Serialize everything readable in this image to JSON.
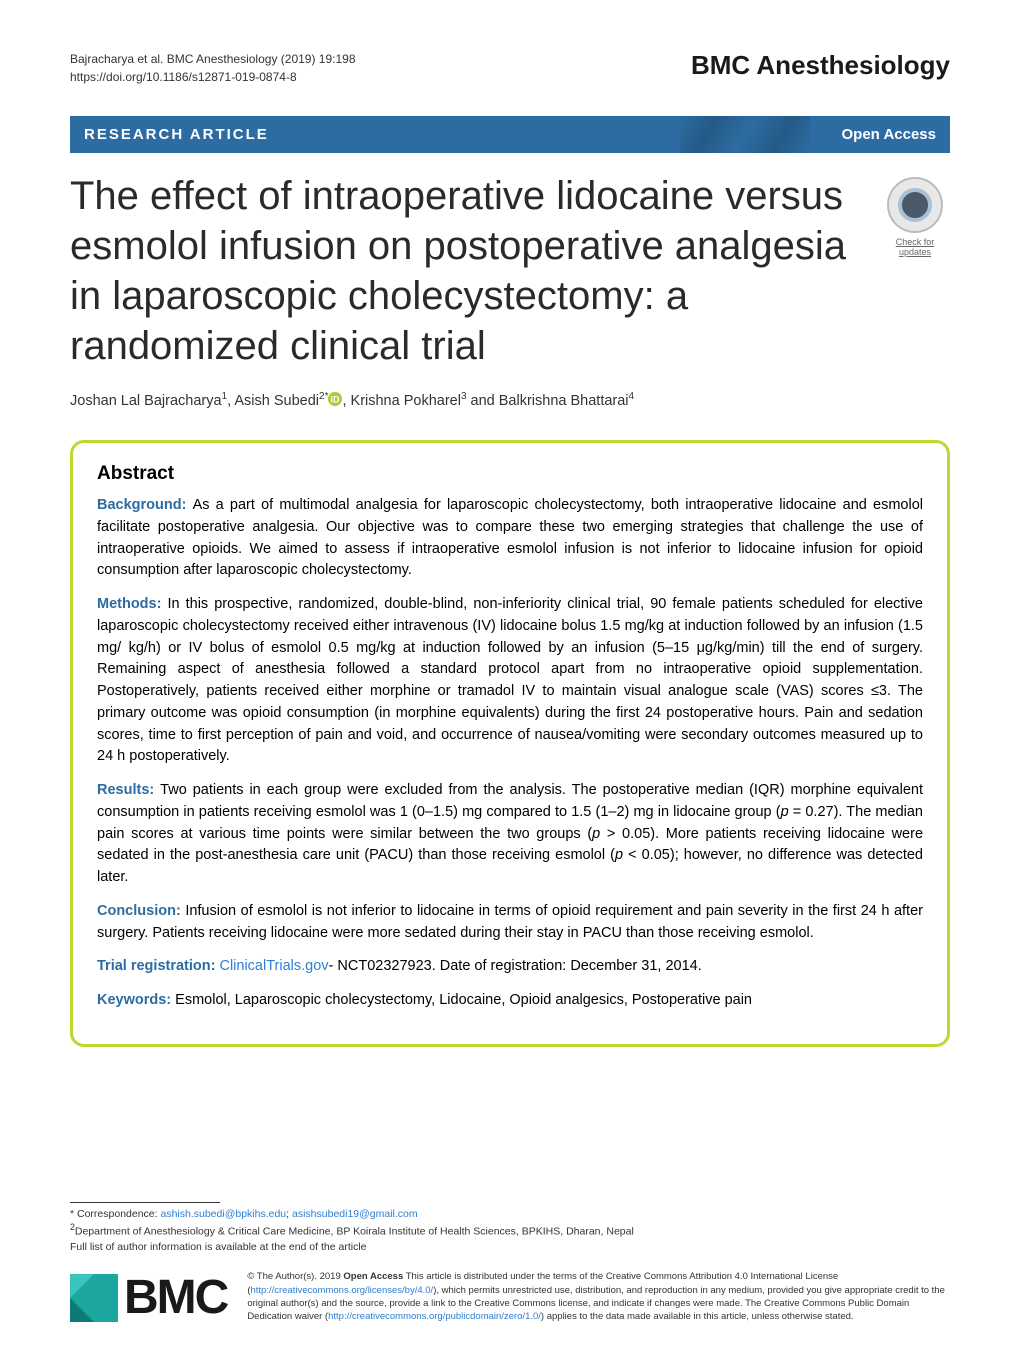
{
  "meta": {
    "citation": "Bajracharya et al. BMC Anesthesiology          (2019) 19:198",
    "doi": "https://doi.org/10.1186/s12871-019-0874-8",
    "journal_logo": "BMC Anesthesiology"
  },
  "header": {
    "article_type": "RESEARCH ARTICLE",
    "open_access": "Open Access"
  },
  "title": "The effect of intraoperative lidocaine versus esmolol infusion on postoperative analgesia in laparoscopic cholecystectomy: a randomized clinical trial",
  "check_updates": {
    "label": "Check for updates"
  },
  "authors_html": "Joshan Lal Bajracharya<sup>1</sup>, Asish Subedi<sup>2*</sup><span class='orcid'><svg width='14' height='14' viewBox='0 0 14 14'><circle cx='7' cy='7' r='7' fill='#a6ce39'/><text x='7' y='10.5' text-anchor='middle' font-size='9' fill='#fff' font-weight='bold'>iD</text></svg></span>, Krishna Pokharel<sup>3</sup> and Balkrishna Bhattarai<sup>4</sup>",
  "abstract": {
    "heading": "Abstract",
    "sections": [
      {
        "label": "Background:",
        "text": "As a part of multimodal analgesia for laparoscopic cholecystectomy, both intraoperative lidocaine and esmolol facilitate postoperative analgesia. Our objective was to compare these two emerging strategies that challenge the use of intraoperative opioids. We aimed to assess if intraoperative esmolol infusion is not inferior to lidocaine infusion for opioid consumption after laparoscopic cholecystectomy."
      },
      {
        "label": "Methods:",
        "text": "In this prospective, randomized, double-blind, non-inferiority clinical trial, 90 female patients scheduled for elective laparoscopic cholecystectomy received either intravenous (IV) lidocaine bolus 1.5 mg/kg at induction followed by an infusion (1.5 mg/ kg/h) or IV bolus of esmolol 0.5 mg/kg at induction followed by an infusion (5–15 μg/kg/min) till the end of surgery. Remaining aspect of anesthesia followed a standard protocol apart from no intraoperative opioid supplementation. Postoperatively, patients received either morphine or tramadol IV to maintain visual analogue scale (VAS) scores ≤3. The primary outcome was opioid consumption (in morphine equivalents) during the first 24 postoperative hours. Pain and sedation scores, time to first perception of pain and void, and occurrence of nausea/vomiting were secondary outcomes measured up to 24 h postoperatively."
      },
      {
        "label": "Results:",
        "text_html": "Two patients in each group were excluded from the analysis. The postoperative median (IQR) morphine equivalent consumption in patients receiving esmolol was 1 (0–1.5) mg compared to 1.5 (1–2) mg in lidocaine group (<span class='italic'>p</span> = 0.27). The median pain scores at various time points were similar between the two groups (<span class='italic'>p</span> > 0.05). More patients receiving lidocaine were sedated in the post-anesthesia care unit (PACU) than those receiving esmolol (<span class='italic'>p</span> < 0.05); however, no difference was detected later."
      },
      {
        "label": "Conclusion:",
        "text": "Infusion of esmolol is not inferior to lidocaine in terms of opioid requirement and pain severity in the first 24 h after surgery. Patients receiving lidocaine were more sedated during their stay in PACU than those receiving esmolol."
      },
      {
        "label": "Trial registration:",
        "text_html": "<a href='#' data-name='trial-registry-link' data-interactable='true'>ClinicalTrials.gov</a>- NCT02327923. Date of registration: December 31, 2014."
      },
      {
        "label": "Keywords:",
        "text": "Esmolol, Laparoscopic cholecystectomy, Lidocaine, Opioid analgesics, Postoperative pain"
      }
    ]
  },
  "footer": {
    "correspondence_label": "* Correspondence: ",
    "email1": "ashish.subedi@bpkihs.edu",
    "email2": "asishsubedi19@gmail.com",
    "affiliation": "Department of Anesthesiology & Critical Care Medicine, BP Koirala Institute of Health Sciences, BPKIHS, Dharan, Nepal",
    "affil_sup": "2",
    "full_list": "Full list of author information is available at the end of the article"
  },
  "license": {
    "bmc_text": "BMC",
    "text_html": "© The Author(s). 2019 <b>Open Access</b> This article is distributed under the terms of the Creative Commons Attribution 4.0 International License (<a href='#' data-name='cc-license-link' data-interactable='true'>http://creativecommons.org/licenses/by/4.0/</a>), which permits unrestricted use, distribution, and reproduction in any medium, provided you give appropriate credit to the original author(s) and the source, provide a link to the Creative Commons license, and indicate if changes were made. The Creative Commons Public Domain Dedication waiver (<a href='#' data-name='cc-waiver-link' data-interactable='true'>http://creativecommons.org/publicdomain/zero/1.0/</a>) applies to the data made available in this article, unless otherwise stated."
  },
  "colors": {
    "brand_blue": "#2d6ca2",
    "accent_green": "#bfd730",
    "link_blue": "#2d7fd3",
    "bmc_teal": "#1ba6a0"
  }
}
